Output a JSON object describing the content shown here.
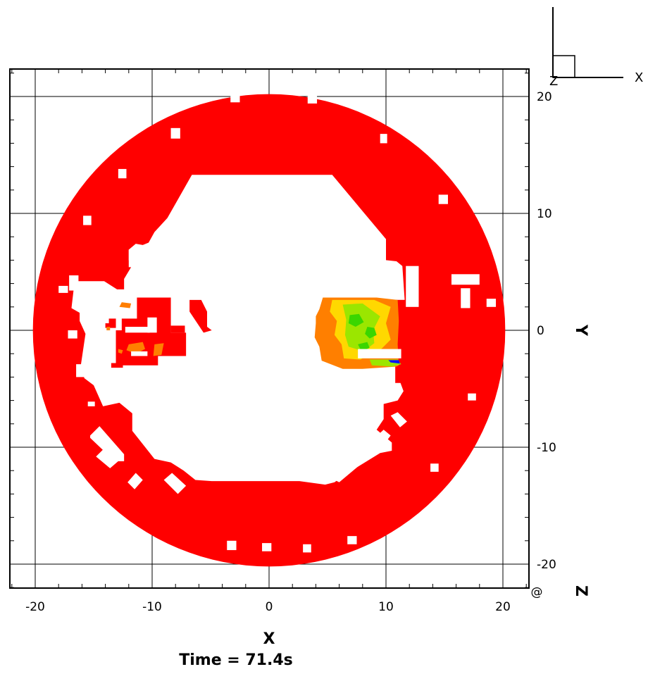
{
  "chart_data": {
    "type": "heatmap",
    "xlabel": "X",
    "ylabel": "Y",
    "zlabel": "Z",
    "time_label": "Time = 71.4s",
    "xlim": [
      -22.1,
      22.1
    ],
    "ylim": [
      -22.1,
      22.1
    ],
    "x_ticks": [
      -20,
      -10,
      0,
      10,
      20
    ],
    "y_ticks": [
      -20,
      -10,
      0,
      10,
      20
    ],
    "x_tick_labels": [
      "-20",
      "-10",
      "0",
      "10",
      "20"
    ],
    "y_tick_labels": [
      "-20",
      "-10",
      "0",
      "10",
      "20"
    ],
    "grid": true,
    "triad": {
      "x_label": "X",
      "z_label": "Z"
    },
    "domain": {
      "shape": "annulus",
      "outer_radius": 20.2,
      "fill": "#ff0000"
    },
    "colors": {
      "field": "#ff0000",
      "orange": "#ff7f00",
      "yellow": "#ffd800",
      "green_light": "#9be600",
      "green": "#3ad600",
      "blue": "#0010ff",
      "background": "#ffffff"
    }
  }
}
